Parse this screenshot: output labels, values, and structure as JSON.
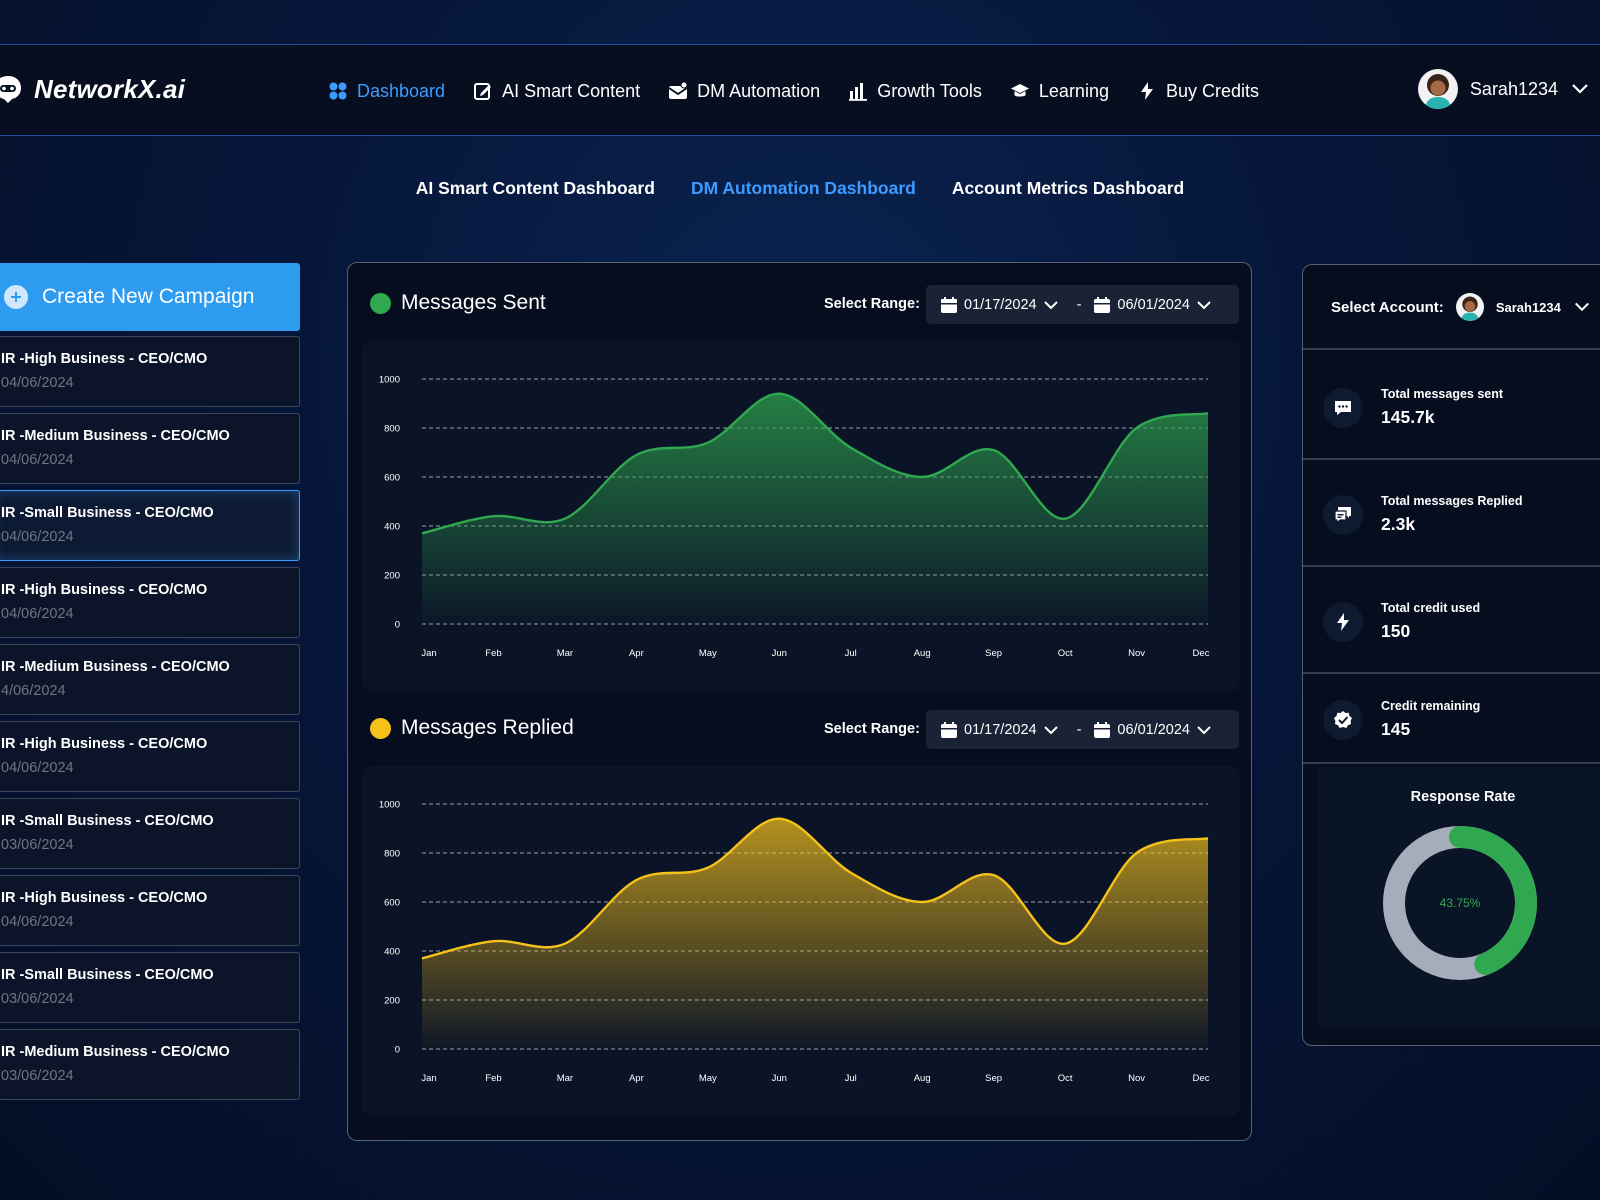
{
  "app": {
    "name": "NetworkX.ai"
  },
  "nav": {
    "items": [
      {
        "label": "Dashboard",
        "icon": "grid-icon",
        "active": true
      },
      {
        "label": "AI Smart Content",
        "icon": "edit-icon",
        "active": false
      },
      {
        "label": "DM Automation",
        "icon": "mail-icon",
        "active": false
      },
      {
        "label": "Growth Tools",
        "icon": "bar-chart-icon",
        "active": false
      },
      {
        "label": "Learning",
        "icon": "graduation-cap-icon",
        "active": false
      },
      {
        "label": "Buy Credits",
        "icon": "lightning-icon",
        "active": false
      }
    ],
    "user": {
      "name": "Sarah1234"
    }
  },
  "subtabs": [
    {
      "label": "AI Smart Content Dashboard",
      "active": false
    },
    {
      "label": "DM Automation Dashboard",
      "active": true
    },
    {
      "label": "Account Metrics Dashboard",
      "active": false
    }
  ],
  "campaigns": {
    "create_label": "Create New Campaign",
    "items": [
      {
        "title": "IR -High Business - CEO/CMO",
        "date": "04/06/2024"
      },
      {
        "title": "IR -Medium Business - CEO/CMO",
        "date": "04/06/2024"
      },
      {
        "title": "IR -Small Business - CEO/CMO",
        "date": "04/06/2024",
        "selected": true
      },
      {
        "title": "IR -High Business - CEO/CMO",
        "date": "04/06/2024"
      },
      {
        "title": "IR -Medium Business - CEO/CMO",
        "date": "4/06/2024"
      },
      {
        "title": "IR -High Business - CEO/CMO",
        "date": "04/06/2024"
      },
      {
        "title": "IR -Small Business - CEO/CMO",
        "date": "03/06/2024"
      },
      {
        "title": "IR -High Business - CEO/CMO",
        "date": "04/06/2024"
      },
      {
        "title": "IR -Small Business - CEO/CMO",
        "date": "03/06/2024"
      },
      {
        "title": "IR -Medium Business - CEO/CMO",
        "date": "03/06/2024"
      }
    ]
  },
  "range": {
    "label": "Select Range:",
    "start": "01/17/2024",
    "end": "06/01/2024",
    "sep": "-"
  },
  "colors": {
    "sent": "#2fa84f",
    "replied": "#f6c21a",
    "accent": "#3d9bff"
  },
  "chart_data": [
    {
      "type": "area",
      "title": "Messages Sent",
      "categories": [
        "Jan",
        "Feb",
        "Mar",
        "Apr",
        "May",
        "Jun",
        "Jul",
        "Aug",
        "Sep",
        "Oct",
        "Nov",
        "Dec"
      ],
      "series": [
        {
          "values": [
            370,
            440,
            430,
            690,
            740,
            940,
            720,
            600,
            710,
            430,
            800,
            860
          ]
        }
      ],
      "yticks": [
        0,
        200,
        400,
        600,
        800,
        1000
      ],
      "ylim": [
        0,
        1000
      ],
      "grid": true
    },
    {
      "type": "area",
      "title": "Messages Replied",
      "categories": [
        "Jan",
        "Feb",
        "Mar",
        "Apr",
        "May",
        "Jun",
        "Jul",
        "Aug",
        "Sep",
        "Oct",
        "Nov",
        "Dec"
      ],
      "series": [
        {
          "values": [
            370,
            440,
            430,
            690,
            740,
            940,
            720,
            600,
            710,
            430,
            800,
            860
          ]
        }
      ],
      "yticks": [
        0,
        200,
        400,
        600,
        800,
        1000
      ],
      "ylim": [
        0,
        1000
      ],
      "grid": true
    }
  ],
  "account": {
    "label": "Select Account:",
    "name": "Sarah1234",
    "stats": [
      {
        "label": "Total  messages sent",
        "value": "145.7k",
        "icon": "chat-bubble-icon"
      },
      {
        "label": "Total  messages Replied",
        "value": "2.3k",
        "icon": "reply-chat-icon"
      },
      {
        "label": "Total credit used",
        "value": "150",
        "icon": "lightning-icon"
      },
      {
        "label": "Credit remaining",
        "value": "145",
        "icon": "check-badge-icon"
      }
    ],
    "response_rate": {
      "title": "Response Rate",
      "percent": 43.75,
      "label": "43.75%"
    }
  }
}
